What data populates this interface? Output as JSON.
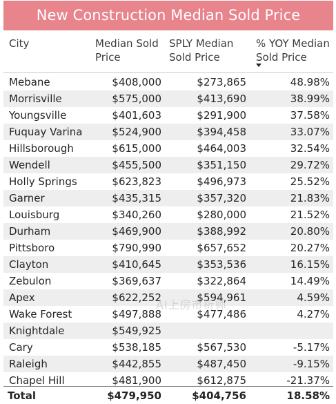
{
  "title": "New Construction Median Sold Price",
  "headers": {
    "city": "City",
    "median_line1": "Median Sold",
    "median_line2": "Price",
    "sply_line1": "SPLY Median",
    "sply_line2": "Sold Price",
    "yoy_line1": "% YOY Median",
    "yoy_line2": "Sold Price"
  },
  "sort_indicator": "sort-descending-icon",
  "rows": [
    {
      "city": "Mebane",
      "median": "$408,000",
      "sply": "$273,865",
      "yoy": "48.98%"
    },
    {
      "city": "Morrisville",
      "median": "$575,000",
      "sply": "$413,690",
      "yoy": "38.99%"
    },
    {
      "city": "Youngsville",
      "median": "$401,603",
      "sply": "$291,900",
      "yoy": "37.58%"
    },
    {
      "city": "Fuquay Varina",
      "median": "$524,900",
      "sply": "$394,458",
      "yoy": "33.07%"
    },
    {
      "city": "Hillsborough",
      "median": "$615,000",
      "sply": "$464,003",
      "yoy": "32.54%"
    },
    {
      "city": "Wendell",
      "median": "$455,500",
      "sply": "$351,150",
      "yoy": "29.72%"
    },
    {
      "city": "Holly Springs",
      "median": "$623,823",
      "sply": "$496,973",
      "yoy": "25.52%"
    },
    {
      "city": "Garner",
      "median": "$435,315",
      "sply": "$357,320",
      "yoy": "21.83%"
    },
    {
      "city": "Louisburg",
      "median": "$340,260",
      "sply": "$280,000",
      "yoy": "21.52%"
    },
    {
      "city": "Durham",
      "median": "$469,900",
      "sply": "$388,992",
      "yoy": "20.80%"
    },
    {
      "city": "Pittsboro",
      "median": "$790,990",
      "sply": "$657,652",
      "yoy": "20.27%"
    },
    {
      "city": "Clayton",
      "median": "$410,645",
      "sply": "$353,536",
      "yoy": "16.15%"
    },
    {
      "city": "Zebulon",
      "median": "$369,637",
      "sply": "$322,864",
      "yoy": "14.49%"
    },
    {
      "city": "Apex",
      "median": "$622,252",
      "sply": "$594,961",
      "yoy": "4.59%"
    },
    {
      "city": "Wake Forest",
      "median": "$497,888",
      "sply": "$477,486",
      "yoy": "4.27%"
    },
    {
      "city": "Knightdale",
      "median": "$549,925",
      "sply": "",
      "yoy": ""
    },
    {
      "city": "Cary",
      "median": "$538,185",
      "sply": "$567,530",
      "yoy": "-5.17%"
    },
    {
      "city": "Raleigh",
      "median": "$442,855",
      "sply": "$487,450",
      "yoy": "-9.15%"
    },
    {
      "city": "Chapel Hill",
      "median": "$481,900",
      "sply": "$612,875",
      "yoy": "-21.37%"
    }
  ],
  "total": {
    "label": "Total",
    "median": "$479,950",
    "sply": "$404,756",
    "yoy": "18.58%"
  },
  "watermark": "AI上房市析师",
  "colors": {
    "title_bg": "#e8848c",
    "alt_row": "#eeeeee"
  }
}
